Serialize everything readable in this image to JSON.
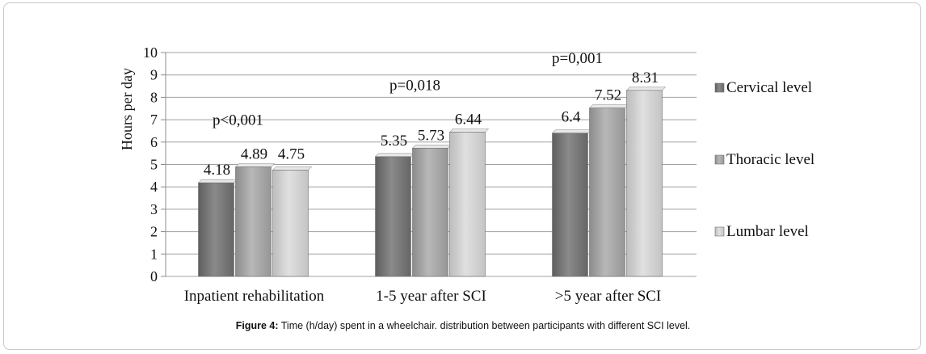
{
  "chart_data": {
    "type": "bar",
    "categories": [
      "Inpatient rehabilitation",
      "1-5 year after SCI",
      ">5 year after SCI"
    ],
    "series": [
      {
        "name": "Cervical level",
        "values": [
          4.18,
          5.35,
          6.4
        ],
        "labels": [
          "4.18",
          "5.35",
          "6.4"
        ],
        "color": "#7a7a7a"
      },
      {
        "name": "Thoracic level",
        "values": [
          4.89,
          5.73,
          7.52
        ],
        "labels": [
          "4.89",
          "5.73",
          "7.52"
        ],
        "color": "#a6a6a6"
      },
      {
        "name": "Lumbar level",
        "values": [
          4.75,
          6.44,
          8.31
        ],
        "labels": [
          "4.75",
          "6.44",
          "8.31"
        ],
        "color": "#cfcfcf"
      }
    ],
    "annotations": [
      "p<0,001",
      "p=0,018",
      "p=0,001"
    ],
    "ylabel": "Hours per day",
    "xlabel": "",
    "ylim": [
      0,
      10
    ],
    "yticks": [
      0,
      1,
      2,
      3,
      4,
      5,
      6,
      7,
      8,
      9,
      10
    ],
    "grid": true,
    "legend_position": "right"
  },
  "caption": {
    "label": "Figure 4:",
    "text": " Time (h/day) spent in a wheelchair. distribution between participants with different SCI level."
  }
}
